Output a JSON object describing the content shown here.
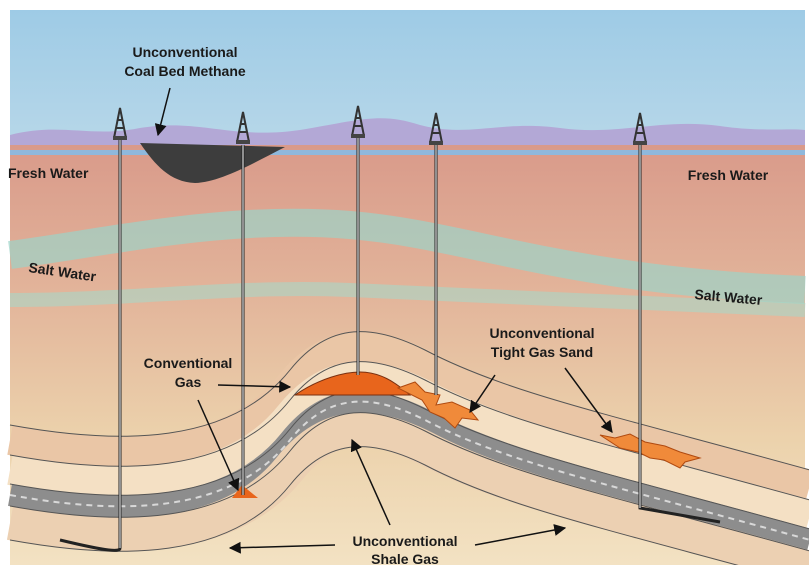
{
  "annotations": {
    "coal_bed_methane": [
      "Unconventional",
      "Coal Bed Methane"
    ],
    "fresh_water_left": [
      "Fresh Water"
    ],
    "fresh_water_right": [
      "Fresh Water"
    ],
    "salt_water_left": [
      "Salt Water"
    ],
    "salt_water_right": [
      "Salt Water"
    ],
    "conventional_gas": [
      "Conventional",
      "Gas"
    ],
    "tight_gas_sand": [
      "Unconventional",
      "Tight Gas Sand"
    ],
    "shale_gas": [
      "Unconventional",
      "Shale Gas"
    ]
  }
}
